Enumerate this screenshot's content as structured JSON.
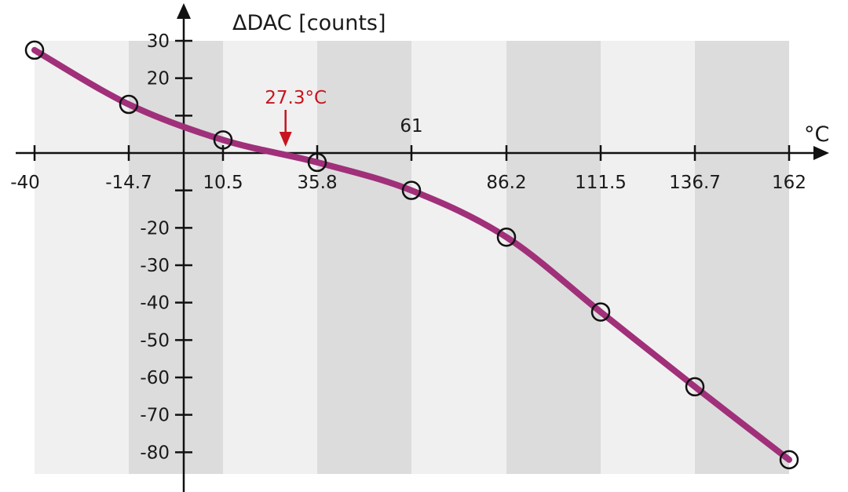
{
  "chart_data": {
    "type": "line",
    "ylabel": "ΔDAC [counts]",
    "xlabel": "°C",
    "x_ticks": [
      -40,
      -14.7,
      10.5,
      35.8,
      61,
      86.2,
      111.5,
      136.7,
      162
    ],
    "x_tick_labels": [
      "-40",
      "-14.7",
      "10.5",
      "35.8",
      "61",
      "86.2",
      "111.5",
      "136.7",
      "162"
    ],
    "y_ticks": [
      30,
      20,
      -20,
      -30,
      -40,
      -50,
      -60,
      -70,
      -80
    ],
    "y_tick_labels": [
      "30",
      "20",
      "-20",
      "-30",
      "-40",
      "-50",
      "-60",
      "-70",
      "-80"
    ],
    "y_minor_ticks": [
      10,
      -10
    ],
    "xlim": [
      -40,
      162
    ],
    "ylim": [
      -85,
      30
    ],
    "series": [
      {
        "x": [
          -40,
          -14.7,
          10.5,
          35.8,
          61,
          86.2,
          111.5,
          136.7,
          162
        ],
        "values": [
          27.5,
          13,
          3.5,
          -2.5,
          -10,
          -22.5,
          -42.5,
          -62.5,
          -82
        ]
      }
    ],
    "annotation": {
      "label": "27.3°C",
      "x": 27.3,
      "y": 0
    },
    "bands": "alternating shaded columns between x ticks",
    "colors": {
      "line": "#a0307a",
      "marker_edge": "#111111",
      "annotation": "#c8141e",
      "band_light": "#f0f0f0",
      "band_dark": "#dcdcdc",
      "axis": "#111111"
    }
  }
}
